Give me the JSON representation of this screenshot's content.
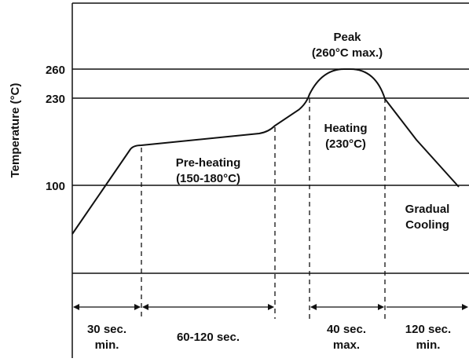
{
  "ylabel": "Temperature (°C)",
  "temperature_ticks": [
    "260",
    "230",
    "100"
  ],
  "zones": {
    "preheat": [
      "Pre-heating",
      "(150-180°C)"
    ],
    "heating": [
      "Heating",
      "(230°C)"
    ],
    "peak": [
      "Peak",
      "(260°C max.)"
    ],
    "cooling": [
      "Gradual",
      "Cooling"
    ]
  },
  "durations": {
    "first": [
      "30 sec.",
      "min."
    ],
    "second": [
      "60-120 sec."
    ],
    "third": [
      "40 sec.",
      "max."
    ],
    "fourth": [
      "120 sec.",
      "min."
    ]
  },
  "colors": {
    "line": "#111111",
    "background": "#ffffff"
  }
}
